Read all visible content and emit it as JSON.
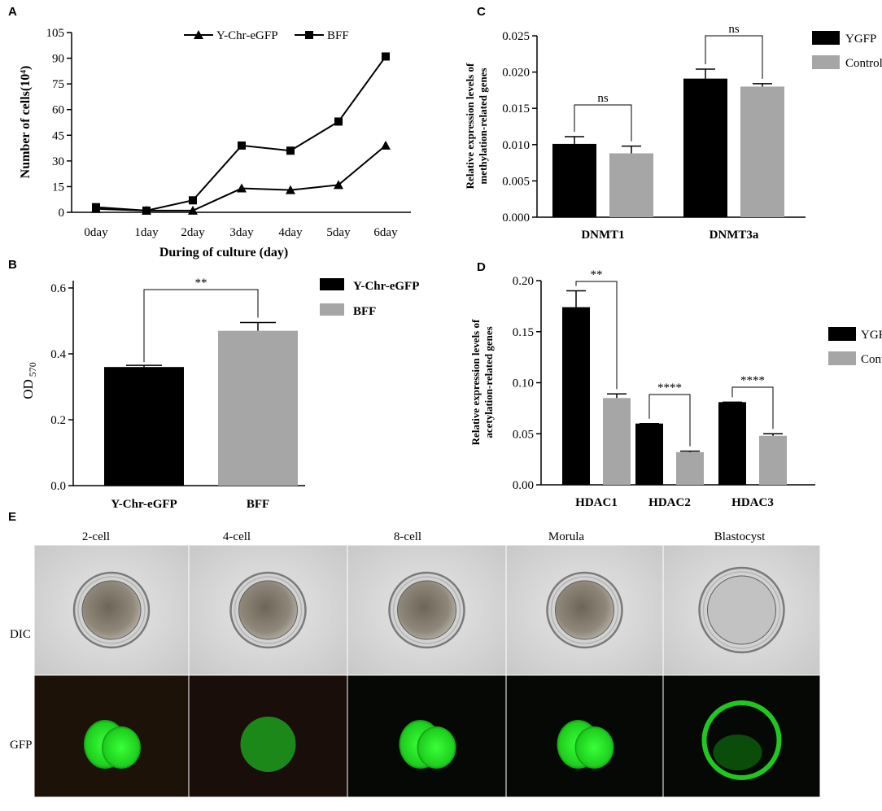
{
  "panels": {
    "a": "A",
    "b": "B",
    "c": "C",
    "d": "D",
    "e": "E"
  },
  "chart_data": [
    {
      "panel": "A",
      "type": "line",
      "x": [
        "0day",
        "1day",
        "2day",
        "3day",
        "4day",
        "5day",
        "6day"
      ],
      "series": [
        {
          "name": "Y-Chr-eGFP",
          "marker": "triangle",
          "values": [
            2,
            1,
            1,
            14,
            13,
            16,
            39
          ]
        },
        {
          "name": "BFF",
          "marker": "square",
          "values": [
            3,
            1,
            7,
            39,
            36,
            53,
            91
          ]
        }
      ],
      "xlabel": "During of culture (day)",
      "ylabel": "Number of cells(10⁴)",
      "ylim": [
        0,
        105
      ],
      "yticks": [
        "0",
        "15",
        "30",
        "45",
        "60",
        "75",
        "90",
        "105"
      ],
      "legend": "top",
      "colors": [
        "#000000",
        "#000000"
      ]
    },
    {
      "panel": "B",
      "type": "bar",
      "categories": [
        "Y-Chr-eGFP",
        "BFF"
      ],
      "values": [
        0.36,
        0.47
      ],
      "errors": [
        0.005,
        0.025
      ],
      "ylabel_main": "OD",
      "ylabel_sub": "570",
      "ylim": [
        0,
        0.6
      ],
      "yticks": [
        "0.0",
        "0.2",
        "0.4",
        "0.6"
      ],
      "colors": [
        "#000000",
        "#a6a6a6"
      ],
      "legend_entries": [
        "Y-Chr-eGFP",
        "BFF"
      ],
      "significance": "**",
      "legend": "right"
    },
    {
      "panel": "C",
      "type": "bar",
      "categories": [
        "DNMT1",
        "DNMT3a"
      ],
      "series": [
        {
          "name": "YGFP",
          "values": [
            0.0101,
            0.0191
          ],
          "errors": [
            0.001,
            0.0013
          ]
        },
        {
          "name": "Control",
          "values": [
            0.0088,
            0.018
          ],
          "errors": [
            0.001,
            0.0004
          ]
        }
      ],
      "ylabel_line1": "Relative expression levels of",
      "ylabel_line2": "methylation-related genes",
      "ylim": [
        0,
        0.025
      ],
      "yticks": [
        "0.000",
        "0.005",
        "0.010",
        "0.015",
        "0.020",
        "0.025"
      ],
      "colors": [
        "#000000",
        "#a6a6a6"
      ],
      "significance": [
        "ns",
        "ns"
      ],
      "legend": "right"
    },
    {
      "panel": "D",
      "type": "bar",
      "categories": [
        "HDAC1",
        "HDAC2",
        "HDAC3"
      ],
      "series": [
        {
          "name": "YGFP",
          "values": [
            0.174,
            0.06,
            0.081
          ],
          "errors": [
            0.016,
            0.0,
            0.0
          ]
        },
        {
          "name": "Control",
          "values": [
            0.085,
            0.032,
            0.048
          ],
          "errors": [
            0.004,
            0.001,
            0.002
          ]
        }
      ],
      "ylabel_line1": "Relative expression levels of",
      "ylabel_line2": "acetylation-related genes",
      "ylim": [
        0,
        0.2
      ],
      "yticks": [
        "0.00",
        "0.05",
        "0.10",
        "0.15",
        "0.20"
      ],
      "colors": [
        "#000000",
        "#a6a6a6"
      ],
      "significance": [
        "**",
        "****",
        "****"
      ],
      "legend": "right"
    }
  ],
  "panel_e": {
    "stages": [
      "2-cell",
      "4-cell",
      "8-cell",
      "Morula",
      "Blastocyst"
    ],
    "rows": [
      "DIC",
      "GFP"
    ],
    "gfp_color": "#22dd22"
  }
}
